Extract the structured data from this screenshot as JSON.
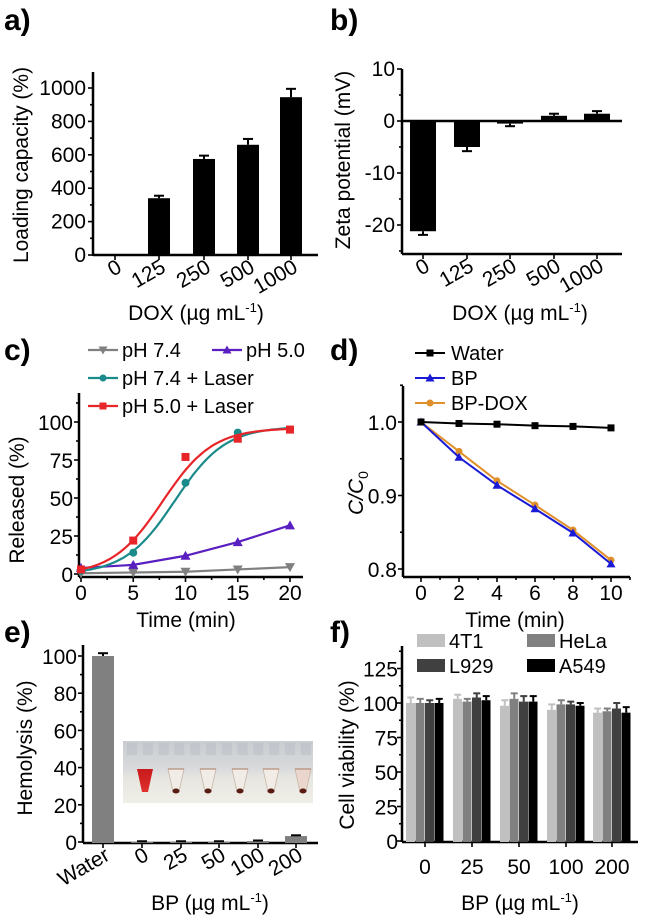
{
  "figure": {
    "panel_labels": [
      "a)",
      "b)",
      "c)",
      "d)",
      "e)",
      "f)"
    ]
  },
  "chart_data": [
    {
      "id": "a",
      "type": "bar",
      "title": "",
      "xlabel": "DOX (µg mL⁻¹)",
      "ylabel": "Loading capacity (%)",
      "categories": [
        "0",
        "125",
        "250",
        "500",
        "1000"
      ],
      "values": [
        0,
        340,
        575,
        660,
        945
      ],
      "errors": [
        0,
        15,
        20,
        35,
        50
      ],
      "ylim": [
        0,
        1100
      ],
      "yticks": [
        0,
        200,
        400,
        600,
        800,
        1000
      ],
      "bar_color": "#000000",
      "grid": false
    },
    {
      "id": "b",
      "type": "bar",
      "title": "",
      "xlabel": "DOX (µg mL⁻¹)",
      "ylabel": "Zeta potential (mV)",
      "categories": [
        "0",
        "125",
        "250",
        "500",
        "1000"
      ],
      "values": [
        -21.2,
        -5.0,
        -0.5,
        1.0,
        1.4
      ],
      "errors": [
        0.7,
        0.8,
        0.5,
        0.4,
        0.5
      ],
      "ylim": [
        -25,
        10
      ],
      "yticks": [
        -20,
        -10,
        0,
        10
      ],
      "bar_color": "#000000",
      "grid": false
    },
    {
      "id": "c",
      "type": "line",
      "title": "",
      "xlabel": "Time (min)",
      "ylabel": "Released  (%)",
      "x": [
        0,
        5,
        10,
        15,
        20
      ],
      "xlim": [
        0,
        21
      ],
      "ylim": [
        -2,
        120
      ],
      "xticks": [
        0,
        5,
        10,
        15,
        20
      ],
      "yticks": [
        0,
        25,
        50,
        75,
        100
      ],
      "legend_position": "top",
      "series": [
        {
          "name": "pH 7.4",
          "color": "#808080",
          "marker": "triangle-down",
          "values": [
            0.5,
            1,
            1.5,
            3,
            4.5
          ],
          "fit": "line"
        },
        {
          "name": "pH 5.0",
          "color": "#5a1fc0",
          "marker": "triangle-up",
          "values": [
            4,
            6,
            12,
            21,
            32
          ],
          "fit": "line"
        },
        {
          "name": "pH 7.4 + Laser",
          "color": "#1a8a8a",
          "marker": "circle",
          "values": [
            2,
            14,
            60,
            93,
            95
          ],
          "fit": "sigmoid",
          "fit_params": [
            97,
            9.0,
            2.4
          ]
        },
        {
          "name": "pH 5.0 + Laser",
          "color": "#e8262a",
          "marker": "square",
          "values": [
            3,
            22,
            77,
            89,
            95
          ],
          "fit": "sigmoid",
          "fit_params": [
            96,
            7.8,
            2.4
          ]
        }
      ],
      "grid": false
    },
    {
      "id": "d",
      "type": "line",
      "title": "",
      "xlabel": "Time (min)",
      "ylabel": "C/C0",
      "x": [
        0,
        2,
        4,
        6,
        8,
        10
      ],
      "xlim": [
        -0.8,
        11
      ],
      "ylim": [
        0.795,
        1.05
      ],
      "xticks": [
        0,
        2,
        4,
        6,
        8,
        10
      ],
      "yticks": [
        0.8,
        0.9,
        1.0
      ],
      "legend_position": "top-left",
      "series": [
        {
          "name": "Water",
          "color": "#000000",
          "marker": "square",
          "values": [
            1.0,
            0.998,
            0.997,
            0.995,
            0.994,
            0.992
          ]
        },
        {
          "name": "BP",
          "color": "#1a1ad6",
          "marker": "triangle-up",
          "values": [
            1.0,
            0.952,
            0.914,
            0.882,
            0.849,
            0.807
          ]
        },
        {
          "name": "BP-DOX",
          "color": "#e0902a",
          "marker": "circle",
          "values": [
            1.0,
            0.96,
            0.92,
            0.887,
            0.853,
            0.812
          ]
        }
      ],
      "grid": false
    },
    {
      "id": "e",
      "type": "bar",
      "title": "",
      "xlabel": "BP (µg mL⁻¹)",
      "ylabel": "Hemolysis (%)",
      "categories": [
        "Water",
        "0",
        "25",
        "50",
        "100",
        "200"
      ],
      "values": [
        100,
        0.2,
        0.2,
        0.2,
        0.5,
        3.2
      ],
      "errors": [
        1.5,
        0.2,
        0.2,
        0.2,
        0.3,
        0.4
      ],
      "ylim": [
        0,
        105
      ],
      "yticks": [
        0,
        20,
        40,
        60,
        80,
        100
      ],
      "bar_color": "#808080",
      "inset": "photo of hemolysis tubes: red tube (water) followed by five clear tubes with dark pellets",
      "grid": false
    },
    {
      "id": "f",
      "type": "bar",
      "title": "",
      "xlabel": "BP (µg mL⁻¹)",
      "ylabel": "Cell viability (%)",
      "categories": [
        "0",
        "25",
        "50",
        "100",
        "200"
      ],
      "ylim": [
        0,
        140
      ],
      "yticks": [
        0,
        25,
        50,
        75,
        100,
        125
      ],
      "legend_position": "top",
      "series": [
        {
          "name": "4T1",
          "color": "#c0c0c0",
          "values": [
            100,
            103,
            98,
            95,
            93
          ],
          "errors": [
            4,
            3,
            4,
            4,
            3
          ]
        },
        {
          "name": "HeLa",
          "color": "#808080",
          "values": [
            100,
            101,
            103,
            99,
            94
          ],
          "errors": [
            3,
            2,
            4,
            3,
            2
          ]
        },
        {
          "name": "L929",
          "color": "#404040",
          "values": [
            100,
            104,
            101,
            99,
            96
          ],
          "errors": [
            2,
            3,
            4,
            2,
            4
          ]
        },
        {
          "name": "A549",
          "color": "#000000",
          "values": [
            100,
            102,
            101,
            98,
            93
          ],
          "errors": [
            3,
            3,
            4,
            2,
            4
          ]
        }
      ],
      "grid": false
    }
  ]
}
